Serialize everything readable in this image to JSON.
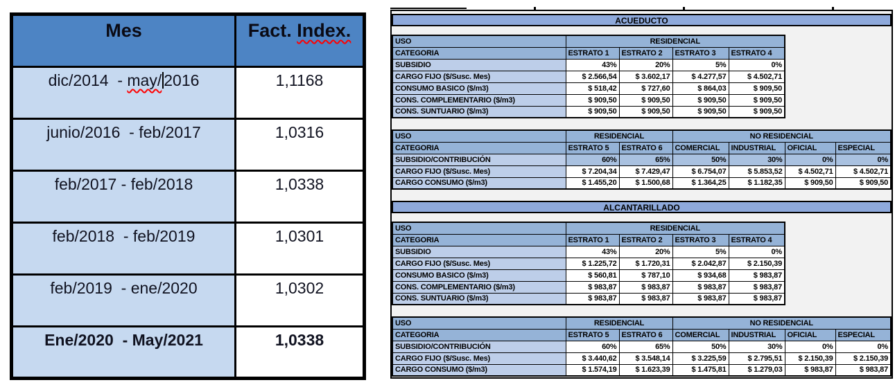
{
  "left_table": {
    "header_mes": "Mes",
    "header_fact_prefix": "Fact. ",
    "header_fact_squiggled": "Index.",
    "rows": [
      {
        "mes_segments": [
          {
            "t": "dic/2014  - "
          },
          {
            "t": "may/",
            "sq": true,
            "cursor": true
          },
          {
            "t": "2016"
          }
        ],
        "value": "1,1168",
        "bold": false
      },
      {
        "mes_segments": [
          {
            "t": "junio/2016  - feb/2017"
          }
        ],
        "value": "1,0316",
        "bold": false
      },
      {
        "mes_segments": [
          {
            "t": "feb/2017 - feb/2018"
          }
        ],
        "value": "1,0338",
        "bold": false
      },
      {
        "mes_segments": [
          {
            "t": "feb/2018  - feb/2019"
          }
        ],
        "value": "1,0301",
        "bold": false
      },
      {
        "mes_segments": [
          {
            "t": "feb/2019  - ene/2020"
          }
        ],
        "value": "1,0302",
        "bold": false
      },
      {
        "mes_segments": [
          {
            "t": "Ene/2020  - May/2021"
          }
        ],
        "value": "1,0338",
        "bold": true
      }
    ]
  },
  "right_panel": {
    "sections": [
      {
        "title": "ACUEDUCTO",
        "blocks": [
          {
            "narrow": true,
            "uso_label": "USO",
            "groups": [
              {
                "label": "RESIDENCIAL",
                "span": 4
              }
            ],
            "categoria_label": "CATEGORIA",
            "categories": [
              "ESTRATO 1",
              "ESTRATO 2",
              "ESTRATO 3",
              "ESTRATO 4"
            ],
            "rows": [
              {
                "label": "SUBSIDIO",
                "values": [
                  "43%",
                  "20%",
                  "5%",
                  "0%"
                ],
                "shade": false
              },
              {
                "label": "CARGO FIJO ($/Susc. Mes)",
                "values": [
                  "$ 2.566,54",
                  "$ 3.602,17",
                  "$ 4.277,57",
                  "$ 4.502,71"
                ],
                "shade": false
              },
              {
                "label": "CONSUMO BASICO ($/m3)",
                "values": [
                  "$ 518,42",
                  "$ 727,60",
                  "$ 864,03",
                  "$ 909,50"
                ],
                "shade": false
              },
              {
                "label": "CONS. COMPLEMENTARIO ($/m3)",
                "values": [
                  "$ 909,50",
                  "$ 909,50",
                  "$ 909,50",
                  "$ 909,50"
                ],
                "shade": false
              },
              {
                "label": "CONS. SUNTUARIO ($/m3)",
                "values": [
                  "$ 909,50",
                  "$ 909,50",
                  "$ 909,50",
                  "$ 909,50"
                ],
                "shade": false
              }
            ]
          },
          {
            "narrow": false,
            "uso_label": "USO",
            "groups": [
              {
                "label": "RESIDENCIAL",
                "span": 2
              },
              {
                "label": "NO RESIDENCIAL",
                "span": 4
              }
            ],
            "categoria_label": "CATEGORIA",
            "categories": [
              "ESTRATO 5",
              "ESTRATO 6",
              "COMERCIAL",
              "INDUSTRIAL",
              "OFICIAL",
              "ESPECIAL"
            ],
            "rows": [
              {
                "label": "SUBSIDIO/CONTRIBUCIÓN",
                "values": [
                  "60%",
                  "65%",
                  "50%",
                  "30%",
                  "0%",
                  "0%"
                ],
                "shade": true
              },
              {
                "label": "CARGO FIJO ($/Susc. Mes)",
                "values": [
                  "$ 7.204,34",
                  "$ 7.429,47",
                  "$ 6.754,07",
                  "$ 5.853,52",
                  "$ 4.502,71",
                  "$ 4.502,71"
                ],
                "shade": false
              },
              {
                "label": "CARGO CONSUMO ($/m3)",
                "values": [
                  "$ 1.455,20",
                  "$ 1.500,68",
                  "$ 1.364,25",
                  "$ 1.182,35",
                  "$ 909,50",
                  "$ 909,50"
                ],
                "shade": false
              }
            ]
          }
        ]
      },
      {
        "title": "ALCANTARILLADO",
        "blocks": [
          {
            "narrow": true,
            "uso_label": "USO",
            "groups": [
              {
                "label": "RESIDENCIAL",
                "span": 4
              }
            ],
            "categoria_label": "CATEGORIA",
            "categories": [
              "ESTRATO 1",
              "ESTRATO 2",
              "ESTRATO 3",
              "ESTRATO 4"
            ],
            "rows": [
              {
                "label": "SUBSIDIO",
                "values": [
                  "43%",
                  "20%",
                  "5%",
                  "0%"
                ],
                "shade": false
              },
              {
                "label": "CARGO FIJO ($/Susc. Mes)",
                "values": [
                  "$ 1.225,72",
                  "$ 1.720,31",
                  "$ 2.042,87",
                  "$ 2.150,39"
                ],
                "shade": false
              },
              {
                "label": "CONSUMO BASICO ($/m3)",
                "values": [
                  "$ 560,81",
                  "$ 787,10",
                  "$ 934,68",
                  "$ 983,87"
                ],
                "shade": false
              },
              {
                "label": "CONS. COMPLEMENTARIO ($/m3)",
                "values": [
                  "$ 983,87",
                  "$ 983,87",
                  "$ 983,87",
                  "$ 983,87"
                ],
                "shade": false
              },
              {
                "label": "CONS. SUNTUARIO ($/m3)",
                "values": [
                  "$ 983,87",
                  "$ 983,87",
                  "$ 983,87",
                  "$ 983,87"
                ],
                "shade": false
              }
            ]
          },
          {
            "narrow": false,
            "uso_label": "USO",
            "groups": [
              {
                "label": "RESIDENCIAL",
                "span": 2
              },
              {
                "label": "NO RESIDENCIAL",
                "span": 4
              }
            ],
            "categoria_label": "CATEGORIA",
            "categories": [
              "ESTRATO 5",
              "ESTRATO 6",
              "COMERCIAL",
              "INDUSTRIAL",
              "OFICIAL",
              "ESPECIAL"
            ],
            "rows": [
              {
                "label": "SUBSIDIO/CONTRIBUCIÓN",
                "values": [
                  "60%",
                  "65%",
                  "50%",
                  "30%",
                  "0%",
                  "0%"
                ],
                "shade": false
              },
              {
                "label": "CARGO FIJO ($/Susc. Mes)",
                "values": [
                  "$ 3.440,62",
                  "$ 3.548,14",
                  "$ 3.225,59",
                  "$ 2.795,51",
                  "$ 2.150,39",
                  "$ 2.150,39"
                ],
                "shade": false
              },
              {
                "label": "CARGO CONSUMO ($/m3)",
                "values": [
                  "$ 1.574,19",
                  "$ 1.623,39",
                  "$ 1.475,81",
                  "$ 1.279,03",
                  "$ 983,87",
                  "$ 983,87"
                ],
                "shade": false
              }
            ]
          }
        ]
      }
    ]
  },
  "colors": {
    "left_header_blue": "#4d84c4",
    "left_row_blue": "#c6d9f0",
    "panel_title_blue": "#8ea9db",
    "header_cell_blue": "#95b3d7",
    "label_cell_blue": "#bdcee9",
    "shade_cell_blue": "#a9c1e0",
    "squiggle_red": "#ff0000"
  }
}
